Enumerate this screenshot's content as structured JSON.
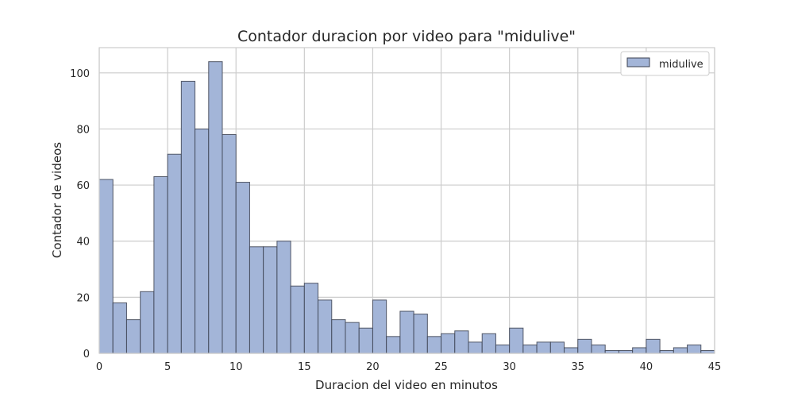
{
  "chart_data": {
    "type": "bar",
    "title": "Contador duracion por video para \"midulive\"",
    "xlabel": "Duracion del video en minutos",
    "ylabel": "Contador de videos",
    "xlim": [
      0,
      45
    ],
    "ylim": [
      0,
      109
    ],
    "bin_width": 1,
    "x": [
      0,
      1,
      2,
      3,
      4,
      5,
      6,
      7,
      8,
      9,
      10,
      11,
      12,
      13,
      14,
      15,
      16,
      17,
      18,
      19,
      20,
      21,
      22,
      23,
      24,
      25,
      26,
      27,
      28,
      29,
      30,
      31,
      32,
      33,
      34,
      35,
      36,
      37,
      38,
      39,
      40,
      41,
      42,
      43,
      44
    ],
    "series": [
      {
        "name": "midulive",
        "values": [
          62,
          18,
          12,
          22,
          63,
          71,
          97,
          80,
          104,
          78,
          61,
          38,
          38,
          40,
          24,
          25,
          19,
          12,
          11,
          9,
          19,
          6,
          15,
          14,
          6,
          7,
          8,
          4,
          7,
          3,
          9,
          3,
          4,
          4,
          2,
          5,
          3,
          1,
          1,
          2,
          5,
          1,
          2,
          3,
          1
        ]
      }
    ],
    "xticks": [
      0,
      5,
      10,
      15,
      20,
      25,
      30,
      35,
      40,
      45
    ],
    "yticks": [
      0,
      20,
      40,
      60,
      80,
      100
    ],
    "grid": true,
    "legend_position": "top-right",
    "colors": {
      "bar_fill": "#a3b5d8",
      "bar_edge": "#3b4150",
      "grid": "#cccccc",
      "axes_edge": "#cccccc"
    }
  }
}
